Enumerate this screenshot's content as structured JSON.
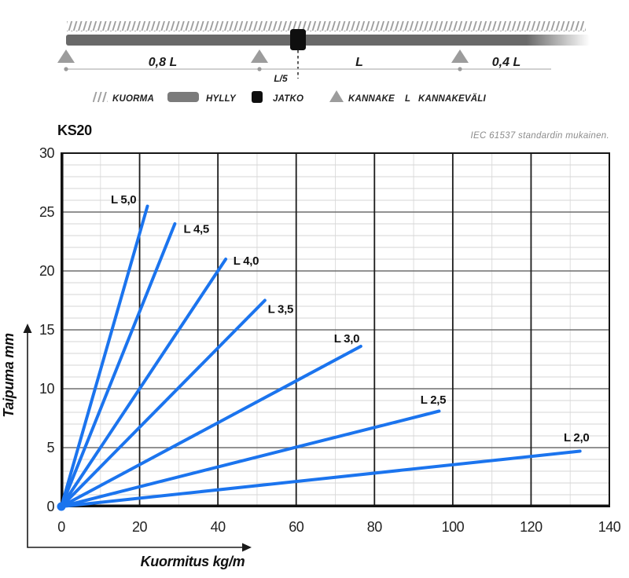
{
  "diagram": {
    "labels": {
      "span_left": "0,8 L",
      "span_mid": "L",
      "span_right": "0,4 L",
      "joint_offset": "L/5"
    },
    "legend": {
      "kuorma": "KUORMA",
      "hylly": "HYLLY",
      "jatko": "JATKO",
      "kannake": "KANNAKE",
      "l_symbol": "L",
      "kannakevali": "KANNAKEVÄLI"
    }
  },
  "chart_data": {
    "type": "line",
    "title": "KS20",
    "note": "IEC 61537 standardin mukainen.",
    "xlabel": "Kuormitus kg/m",
    "ylabel": "Taipuma mm",
    "xlim": [
      0,
      140
    ],
    "ylim": [
      0,
      30
    ],
    "x_major_step": 20,
    "x_minor_step": 10,
    "y_major_step": 5,
    "y_minor_step": 1,
    "x_ticks": [
      "0",
      "20",
      "40",
      "60",
      "80",
      "100",
      "120",
      "140"
    ],
    "y_ticks": [
      "0",
      "5",
      "10",
      "15",
      "20",
      "25",
      "30"
    ],
    "grid": "on",
    "legend_position": "inline-labels",
    "line_color": "#1b74ee",
    "series": [
      {
        "name": "L 5,0",
        "points": [
          [
            0,
            0
          ],
          [
            22,
            25.5
          ]
        ],
        "label_at": [
          15.9,
          26.1
        ]
      },
      {
        "name": "L 4,5",
        "points": [
          [
            0,
            0
          ],
          [
            29,
            24
          ]
        ],
        "label_at": [
          34.5,
          23.6
        ]
      },
      {
        "name": "L 4,0",
        "points": [
          [
            0,
            0
          ],
          [
            42,
            21
          ]
        ],
        "label_at": [
          47.2,
          20.9
        ]
      },
      {
        "name": "L 3,5",
        "points": [
          [
            0,
            0
          ],
          [
            52,
            17.5
          ]
        ],
        "label_at": [
          56.0,
          16.8
        ]
      },
      {
        "name": "L 3,0",
        "points": [
          [
            0,
            0
          ],
          [
            76.5,
            13.6
          ]
        ],
        "label_at": [
          72.9,
          14.3
        ]
      },
      {
        "name": "L 2,5",
        "points": [
          [
            0,
            0
          ],
          [
            96.5,
            8.1
          ]
        ],
        "label_at": [
          95.0,
          9.1
        ]
      },
      {
        "name": "L 2,0",
        "points": [
          [
            0,
            0
          ],
          [
            132.5,
            4.7
          ]
        ],
        "label_at": [
          131.6,
          5.9
        ]
      }
    ]
  }
}
